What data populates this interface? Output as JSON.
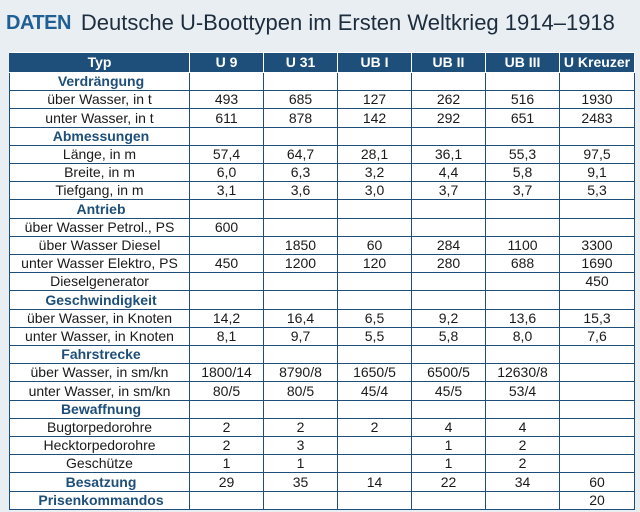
{
  "header": {
    "tag": "DATEN",
    "title": "Deutsche U-Boottypen im Ersten Weltkrieg 1914–1918"
  },
  "table": {
    "columns": [
      "Typ",
      "U 9",
      "U 31",
      "UB I",
      "UB II",
      "UB III",
      "U Kreuzer"
    ],
    "rows": [
      {
        "type": "section",
        "label": "Verdrängung",
        "values": [
          "",
          "",
          "",
          "",
          "",
          ""
        ]
      },
      {
        "type": "data",
        "label": "über Wasser, in t",
        "values": [
          "493",
          "685",
          "127",
          "262",
          "516",
          "1930"
        ]
      },
      {
        "type": "data",
        "label": "unter Wasser, in t",
        "values": [
          "611",
          "878",
          "142",
          "292",
          "651",
          "2483"
        ]
      },
      {
        "type": "section",
        "label": "Abmessungen",
        "values": [
          "",
          "",
          "",
          "",
          "",
          ""
        ]
      },
      {
        "type": "data",
        "label": "Länge, in m",
        "values": [
          "57,4",
          "64,7",
          "28,1",
          "36,1",
          "55,3",
          "97,5"
        ]
      },
      {
        "type": "data",
        "label": "Breite, in m",
        "values": [
          "6,0",
          "6,3",
          "3,2",
          "4,4",
          "5,8",
          "9,1"
        ]
      },
      {
        "type": "data",
        "label": "Tiefgang, in m",
        "values": [
          "3,1",
          "3,6",
          "3,0",
          "3,7",
          "3,7",
          "5,3"
        ]
      },
      {
        "type": "section",
        "label": "Antrieb",
        "values": [
          "",
          "",
          "",
          "",
          "",
          ""
        ]
      },
      {
        "type": "data",
        "label": "über Wasser Petrol., PS",
        "values": [
          "600",
          "",
          "",
          "",
          "",
          ""
        ]
      },
      {
        "type": "data",
        "label": "über Wasser Diesel",
        "values": [
          "",
          "1850",
          "60",
          "284",
          "1100",
          "3300"
        ]
      },
      {
        "type": "data",
        "label": "unter Wasser Elektro, PS",
        "values": [
          "450",
          "1200",
          "120",
          "280",
          "688",
          "1690"
        ]
      },
      {
        "type": "data",
        "label": "Dieselgenerator",
        "values": [
          "",
          "",
          "",
          "",
          "",
          "450"
        ]
      },
      {
        "type": "section",
        "label": "Geschwindigkeit",
        "values": [
          "",
          "",
          "",
          "",
          "",
          ""
        ]
      },
      {
        "type": "data",
        "label": "über Wasser, in Knoten",
        "values": [
          "14,2",
          "16,4",
          "6,5",
          "9,2",
          "13,6",
          "15,3"
        ]
      },
      {
        "type": "data",
        "label": "unter Wasser, in Knoten",
        "values": [
          "8,1",
          "9,7",
          "5,5",
          "5,8",
          "8,0",
          "7,6"
        ]
      },
      {
        "type": "section",
        "label": "Fahrstrecke",
        "values": [
          "",
          "",
          "",
          "",
          "",
          ""
        ]
      },
      {
        "type": "data",
        "label": "über Wasser, in sm/kn",
        "values": [
          "1800/14",
          "8790/8",
          "1650/5",
          "6500/5",
          "12630/8",
          ""
        ]
      },
      {
        "type": "data",
        "label": "unter Wasser, in sm/kn",
        "values": [
          "80/5",
          "80/5",
          "45/4",
          "45/5",
          "53/4",
          ""
        ]
      },
      {
        "type": "section",
        "label": "Bewaffnung",
        "values": [
          "",
          "",
          "",
          "",
          "",
          ""
        ]
      },
      {
        "type": "data",
        "label": "Bugtorpedorohre",
        "values": [
          "2",
          "2",
          "2",
          "4",
          "4",
          ""
        ]
      },
      {
        "type": "data",
        "label": "Hecktorpedorohre",
        "values": [
          "2",
          "3",
          "",
          "1",
          "2",
          ""
        ]
      },
      {
        "type": "data",
        "label": "Geschütze",
        "values": [
          "1",
          "1",
          "",
          "1",
          "2",
          ""
        ]
      },
      {
        "type": "section",
        "label": "Besatzung",
        "values": [
          "29",
          "35",
          "14",
          "22",
          "34",
          "60"
        ]
      },
      {
        "type": "section",
        "label": "Prisenkommandos",
        "values": [
          "",
          "",
          "",
          "",
          "",
          "20"
        ]
      }
    ]
  },
  "colors": {
    "header_bg": "#1d4f7a",
    "section_text": "#1d4f7a",
    "tag": "#1f5f94"
  }
}
